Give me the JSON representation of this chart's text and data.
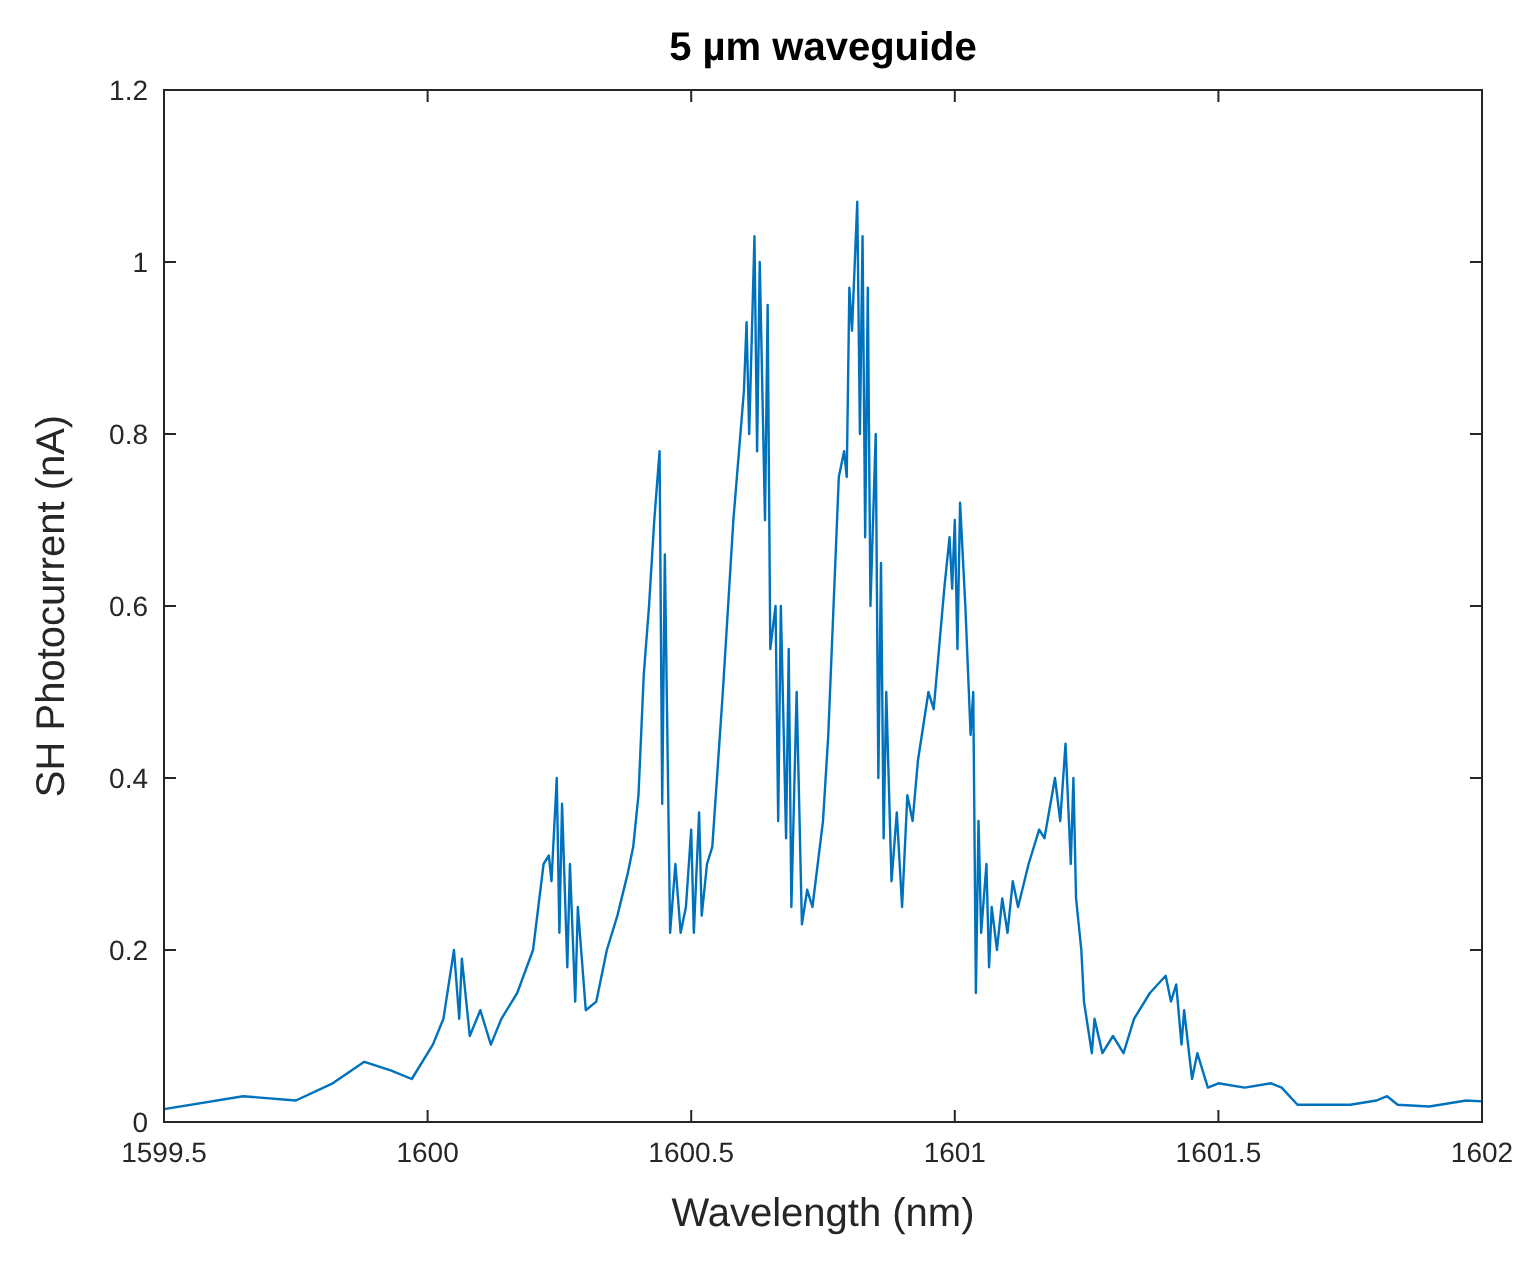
{
  "chart_data": {
    "type": "line",
    "title": "5 µm waveguide",
    "xlabel": "Wavelength (nm)",
    "ylabel": "SH Photocurrent (nA)",
    "xlim": [
      1599.5,
      1602
    ],
    "ylim": [
      0,
      1.2
    ],
    "xticks": [
      1599.5,
      1600,
      1600.5,
      1601,
      1601.5,
      1602
    ],
    "yticks": [
      0,
      0.2,
      0.4,
      0.6,
      0.8,
      1,
      1.2
    ],
    "grid": false,
    "marker": "none",
    "line_style": "solid",
    "series": [
      {
        "color": "#0072bd",
        "x": [
          1599.5,
          1599.65,
          1599.75,
          1599.82,
          1599.88,
          1599.93,
          1599.97,
          1600.01,
          1600.03,
          1600.05,
          1600.06,
          1600.065,
          1600.08,
          1600.1,
          1600.12,
          1600.14,
          1600.17,
          1600.2,
          1600.22,
          1600.23,
          1600.235,
          1600.245,
          1600.25,
          1600.255,
          1600.265,
          1600.27,
          1600.28,
          1600.285,
          1600.3,
          1600.32,
          1600.34,
          1600.36,
          1600.38,
          1600.39,
          1600.4,
          1600.41,
          1600.42,
          1600.43,
          1600.44,
          1600.445,
          1600.45,
          1600.46,
          1600.47,
          1600.48,
          1600.49,
          1600.5,
          1600.505,
          1600.515,
          1600.52,
          1600.53,
          1600.54,
          1600.56,
          1600.58,
          1600.6,
          1600.605,
          1600.61,
          1600.62,
          1600.625,
          1600.63,
          1600.64,
          1600.645,
          1600.65,
          1600.66,
          1600.665,
          1600.67,
          1600.68,
          1600.685,
          1600.69,
          1600.7,
          1600.71,
          1600.72,
          1600.73,
          1600.74,
          1600.75,
          1600.76,
          1600.77,
          1600.78,
          1600.79,
          1600.795,
          1600.8,
          1600.805,
          1600.815,
          1600.82,
          1600.825,
          1600.83,
          1600.835,
          1600.84,
          1600.85,
          1600.855,
          1600.86,
          1600.865,
          1600.87,
          1600.88,
          1600.89,
          1600.9,
          1600.91,
          1600.92,
          1600.93,
          1600.95,
          1600.96,
          1600.97,
          1600.98,
          1600.99,
          1600.995,
          1601,
          1601.005,
          1601.01,
          1601.02,
          1601.03,
          1601.035,
          1601.04,
          1601.045,
          1601.05,
          1601.06,
          1601.065,
          1601.07,
          1601.08,
          1601.09,
          1601.1,
          1601.11,
          1601.12,
          1601.14,
          1601.16,
          1601.17,
          1601.19,
          1601.2,
          1601.21,
          1601.22,
          1601.225,
          1601.23,
          1601.24,
          1601.245,
          1601.26,
          1601.265,
          1601.28,
          1601.3,
          1601.32,
          1601.34,
          1601.37,
          1601.4,
          1601.41,
          1601.42,
          1601.43,
          1601.435,
          1601.45,
          1601.46,
          1601.48,
          1601.5,
          1601.55,
          1601.6,
          1601.62,
          1601.65,
          1601.75,
          1601.8,
          1601.82,
          1601.84,
          1601.9,
          1601.97,
          1602
        ],
        "values": [
          0.015,
          0.03,
          0.025,
          0.045,
          0.07,
          0.06,
          0.05,
          0.09,
          0.12,
          0.2,
          0.12,
          0.19,
          0.1,
          0.13,
          0.09,
          0.12,
          0.15,
          0.2,
          0.3,
          0.31,
          0.28,
          0.4,
          0.22,
          0.37,
          0.18,
          0.3,
          0.14,
          0.25,
          0.13,
          0.14,
          0.2,
          0.24,
          0.29,
          0.32,
          0.38,
          0.52,
          0.6,
          0.7,
          0.78,
          0.37,
          0.66,
          0.22,
          0.3,
          0.22,
          0.25,
          0.34,
          0.22,
          0.36,
          0.24,
          0.3,
          0.32,
          0.5,
          0.7,
          0.85,
          0.93,
          0.8,
          1.03,
          0.78,
          1,
          0.7,
          0.95,
          0.55,
          0.6,
          0.35,
          0.6,
          0.33,
          0.55,
          0.25,
          0.5,
          0.23,
          0.27,
          0.25,
          0.3,
          0.35,
          0.45,
          0.6,
          0.75,
          0.78,
          0.75,
          0.97,
          0.92,
          1.07,
          0.8,
          1.03,
          0.68,
          0.97,
          0.6,
          0.8,
          0.4,
          0.65,
          0.33,
          0.5,
          0.28,
          0.36,
          0.25,
          0.38,
          0.35,
          0.42,
          0.5,
          0.48,
          0.55,
          0.62,
          0.68,
          0.62,
          0.7,
          0.55,
          0.72,
          0.6,
          0.45,
          0.5,
          0.15,
          0.35,
          0.22,
          0.3,
          0.18,
          0.25,
          0.2,
          0.26,
          0.22,
          0.28,
          0.25,
          0.3,
          0.34,
          0.33,
          0.4,
          0.35,
          0.44,
          0.3,
          0.4,
          0.26,
          0.2,
          0.14,
          0.08,
          0.12,
          0.08,
          0.1,
          0.08,
          0.12,
          0.15,
          0.17,
          0.14,
          0.16,
          0.09,
          0.13,
          0.05,
          0.08,
          0.04,
          0.045,
          0.04,
          0.045,
          0.04,
          0.02,
          0.02,
          0.025,
          0.03,
          0.02,
          0.018,
          0.025,
          0.024
        ]
      }
    ]
  }
}
